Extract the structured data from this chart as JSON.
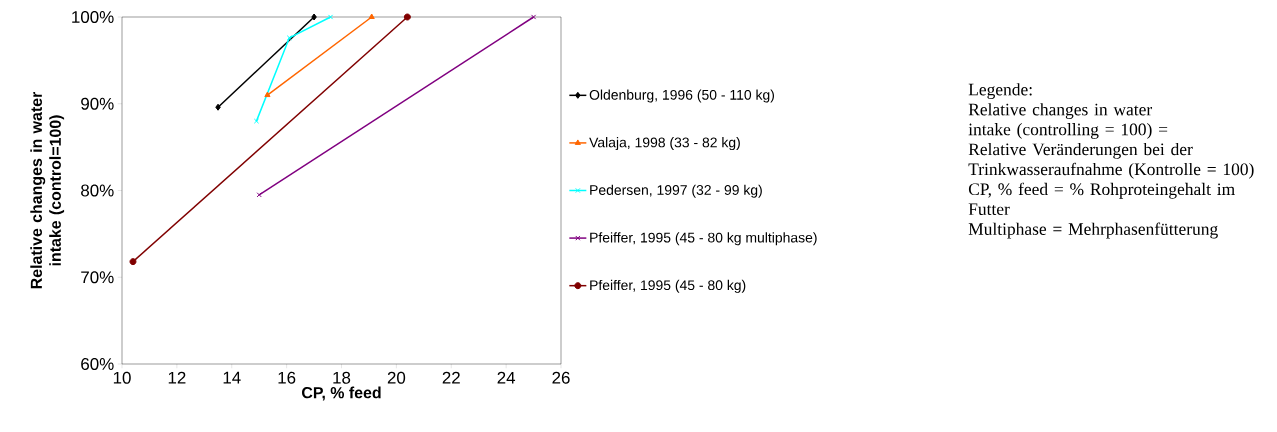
{
  "chart_data": {
    "type": "line",
    "xlabel": "CP, % feed",
    "ylabel": "Relative changes in water intake (control=100)",
    "xlim": [
      10,
      26
    ],
    "xticks": [
      10,
      12,
      14,
      16,
      18,
      20,
      22,
      24,
      26
    ],
    "ylim": [
      60,
      100
    ],
    "yticks": [
      {
        "value": 60,
        "label": "60%"
      },
      {
        "value": 70,
        "label": "70%"
      },
      {
        "value": 80,
        "label": "80%"
      },
      {
        "value": 90,
        "label": "90%"
      },
      {
        "value": 100,
        "label": "100%"
      }
    ],
    "grid": false,
    "legend": "right",
    "series": [
      {
        "name": "Oldenburg, 1996 (50 - 110 kg)",
        "color": "#000000",
        "marker": "diamond",
        "x": [
          13.5,
          17.0
        ],
        "values": [
          89.6,
          100
        ]
      },
      {
        "name": "Valaja, 1998 (33 - 82 kg)",
        "color": "#ff6600",
        "marker": "triangle",
        "x": [
          15.3,
          19.1
        ],
        "values": [
          91.0,
          100
        ]
      },
      {
        "name": "Pedersen, 1997 (32 - 99 kg)",
        "color": "#00ffff",
        "marker": "cross",
        "x": [
          14.9,
          16.1,
          17.6
        ],
        "values": [
          88.0,
          97.6,
          100
        ]
      },
      {
        "name": "Pfeiffer, 1995 (45 - 80 kg multiphase)",
        "color": "#800080",
        "marker": "cross",
        "x": [
          15.0,
          25.0
        ],
        "values": [
          79.5,
          100
        ]
      },
      {
        "name": "Pfeiffer, 1995 (45 - 80 kg)",
        "color": "#800000",
        "marker": "circle",
        "x": [
          10.4,
          20.4
        ],
        "values": [
          71.8,
          100
        ]
      }
    ],
    "annotations": [
      "Legende:",
      "Relative changes in water intake (controlling = 100) = Relative Veränderungen bei der Trinkwasseraufnahme (Kontrolle = 100)",
      "CP, % feed = % Rohproteingehalt im Futter",
      "Multiphase = Mehrphasenfütterung"
    ]
  }
}
